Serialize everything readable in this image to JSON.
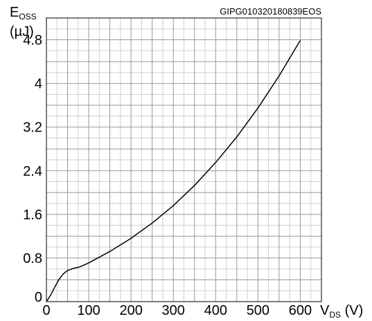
{
  "chart_data": {
    "type": "line",
    "code": "GIPG010320180839EOS",
    "ylabel": {
      "main": "E",
      "sub": "OSS",
      "unit": "(µJ)"
    },
    "xlabel": {
      "main": "V",
      "sub": "DS",
      "unit": " (V)"
    },
    "xlim": [
      0,
      650
    ],
    "ylim": [
      0,
      5.2
    ],
    "xticks": [
      0,
      100,
      200,
      300,
      400,
      500,
      600
    ],
    "xtick_labels": [
      "0",
      "100",
      "200",
      "300",
      "400",
      "500",
      "600"
    ],
    "yticks": [
      0,
      0.8,
      1.6,
      2.4,
      3.2,
      4,
      4.8
    ],
    "ytick_labels": [
      "0",
      "0.8",
      "1.6",
      "2.4",
      "3.2",
      "4",
      "4.8"
    ],
    "grid": true,
    "series": [
      {
        "x": [
          0,
          10,
          20,
          30,
          40,
          50,
          60,
          70,
          80,
          100,
          150,
          200,
          250,
          300,
          350,
          400,
          450,
          500,
          550,
          600
        ],
        "y": [
          0,
          0.12,
          0.27,
          0.41,
          0.51,
          0.57,
          0.6,
          0.62,
          0.64,
          0.71,
          0.92,
          1.16,
          1.44,
          1.76,
          2.13,
          2.55,
          3.02,
          3.55,
          4.14,
          4.79
        ]
      }
    ]
  }
}
